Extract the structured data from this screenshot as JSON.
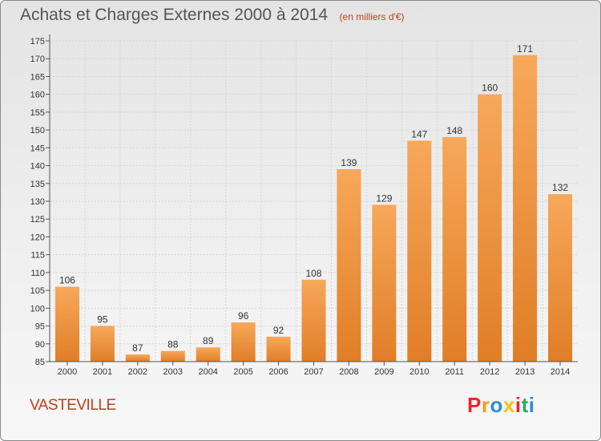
{
  "header": {
    "title": "Achats et Charges Externes 2000 à 2014",
    "unit": "(en milliers d'€)"
  },
  "location": "VASTEVILLE",
  "logo": {
    "text": "Proxiti",
    "letters": [
      {
        "ch": "P",
        "color": "#e8262a"
      },
      {
        "ch": "r",
        "color": "#f39c12"
      },
      {
        "ch": "o",
        "color": "#2e8ad8"
      },
      {
        "ch": "x",
        "color": "#f1c40f"
      },
      {
        "ch": "i",
        "color": "#e8262a"
      },
      {
        "ch": "t",
        "color": "#27ae60"
      },
      {
        "ch": "i",
        "color": "#2e8ad8"
      }
    ]
  },
  "colors": {
    "bar_top": "#f7a85a",
    "bar_bottom": "#e07e26",
    "axis": "#555555",
    "grid": "#d6d6d6",
    "text": "#333333"
  },
  "chart_data": {
    "type": "bar",
    "categories": [
      "2000",
      "2001",
      "2002",
      "2003",
      "2004",
      "2005",
      "2006",
      "2007",
      "2008",
      "2009",
      "2010",
      "2011",
      "2012",
      "2013",
      "2014"
    ],
    "values": [
      106,
      95,
      87,
      88,
      89,
      96,
      92,
      108,
      139,
      129,
      147,
      148,
      160,
      171,
      132
    ],
    "title": "Achats et Charges Externes 2000 à 2014",
    "ylim": [
      85,
      175
    ],
    "yticks": [
      85,
      90,
      95,
      100,
      105,
      110,
      115,
      120,
      125,
      130,
      135,
      140,
      145,
      150,
      155,
      160,
      165,
      170,
      175
    ],
    "grid": true,
    "data_labels": true
  }
}
